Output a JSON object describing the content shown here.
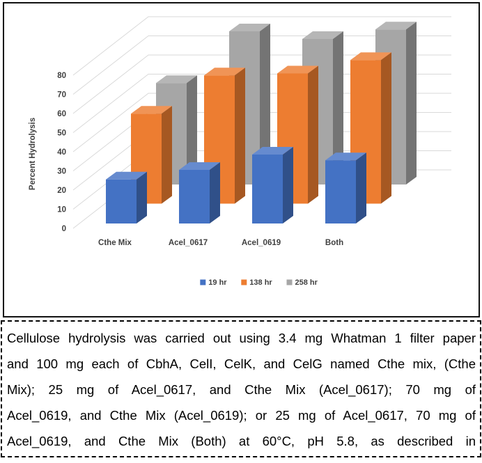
{
  "figure": {
    "caption_lines": [
      "Cellulose hydrolysis was carried out using 3.4 mg Whatman 1 filter paper",
      "and 100 mg each of CbhA, CelI, CelK, and CelG named Cthe mix, (Cthe",
      "Mix); 25 mg of Acel_0617, and Cthe Mix (Acel_0617); 70 mg of",
      "Acel_0619, and Cthe Mix (Acel_0619); or 25 mg of Acel_0617, 70 mg of",
      "Acel_0619, and Cthe Mix (Both) at 60°C, pH 5.8, as described in"
    ]
  },
  "chart_data": {
    "type": "bar",
    "projection": "3d",
    "title": "",
    "xlabel": "",
    "ylabel": "Percent Hydrolysis",
    "categories": [
      "Cthe Mix",
      "Acel_0617",
      "Acel_0619",
      "Both"
    ],
    "series": [
      {
        "name": "19 hr",
        "color": "#4472C4",
        "values": [
          23,
          28,
          36,
          33
        ]
      },
      {
        "name": "138 hr",
        "color": "#ED7D31",
        "values": [
          47,
          67,
          68,
          75
        ]
      },
      {
        "name": "258 hr",
        "color": "#A6A6A6",
        "values": [
          53,
          80,
          76,
          81
        ]
      }
    ],
    "ylim": [
      0,
      80
    ],
    "ytick_step": 10,
    "grid": true,
    "grid_color": "#D9D9D9",
    "axis_text_color": "#3F3F3F",
    "legend_position": "bottom"
  }
}
